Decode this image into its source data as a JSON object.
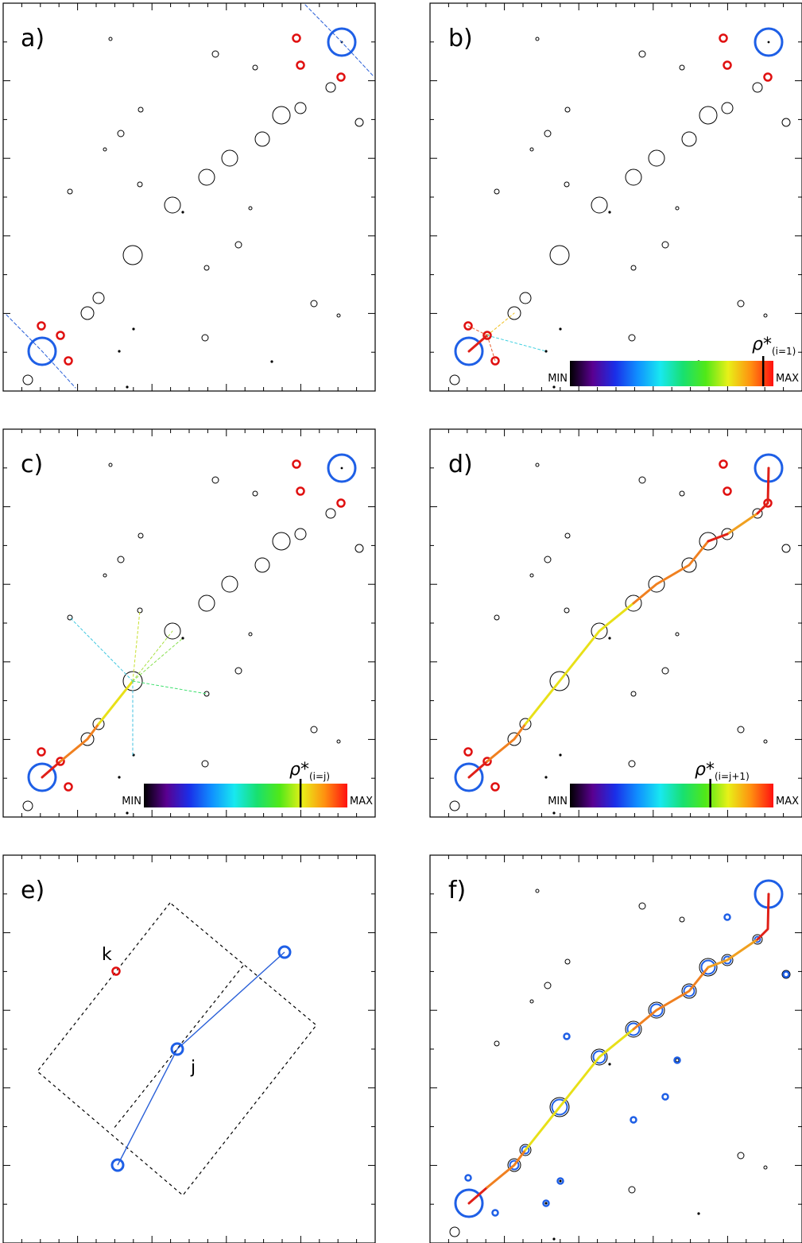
{
  "colors": {
    "frame": "#000000",
    "point": "#000000",
    "endpoint": "#1e5fe6",
    "selected": "#e01010",
    "route_cold": "#e02018",
    "route_warm": "#f08020",
    "route_hot": "#e8e018",
    "search_cone": "#2a60d8",
    "colorbar_stops": [
      "#000000",
      "#5a0090",
      "#1a2ee8",
      "#1090ff",
      "#18e8f0",
      "#18e070",
      "#50e818",
      "#e8f018",
      "#ff9010",
      "#ff1010"
    ]
  },
  "panels": [
    {
      "id": "a",
      "label": "a)"
    },
    {
      "id": "b",
      "label": "b)",
      "colorbar": {
        "min": "MIN",
        "max": "MAX",
        "marker_fraction": 0.95,
        "rho_symbol": "ρ*",
        "rho_subscript": "(i=1)"
      }
    },
    {
      "id": "c",
      "label": "c)",
      "colorbar": {
        "min": "MIN",
        "max": "MAX",
        "marker_fraction": 0.77,
        "rho_symbol": "ρ*",
        "rho_subscript": "(i=j)"
      }
    },
    {
      "id": "d",
      "label": "d)",
      "colorbar": {
        "min": "MIN",
        "max": "MAX",
        "marker_fraction": 0.69,
        "rho_symbol": "ρ*",
        "rho_subscript": "(i=j+1)"
      }
    },
    {
      "id": "e",
      "label": "e)",
      "point_labels": {
        "k": "k",
        "j": "j"
      }
    },
    {
      "id": "f",
      "label": "f)"
    }
  ]
}
